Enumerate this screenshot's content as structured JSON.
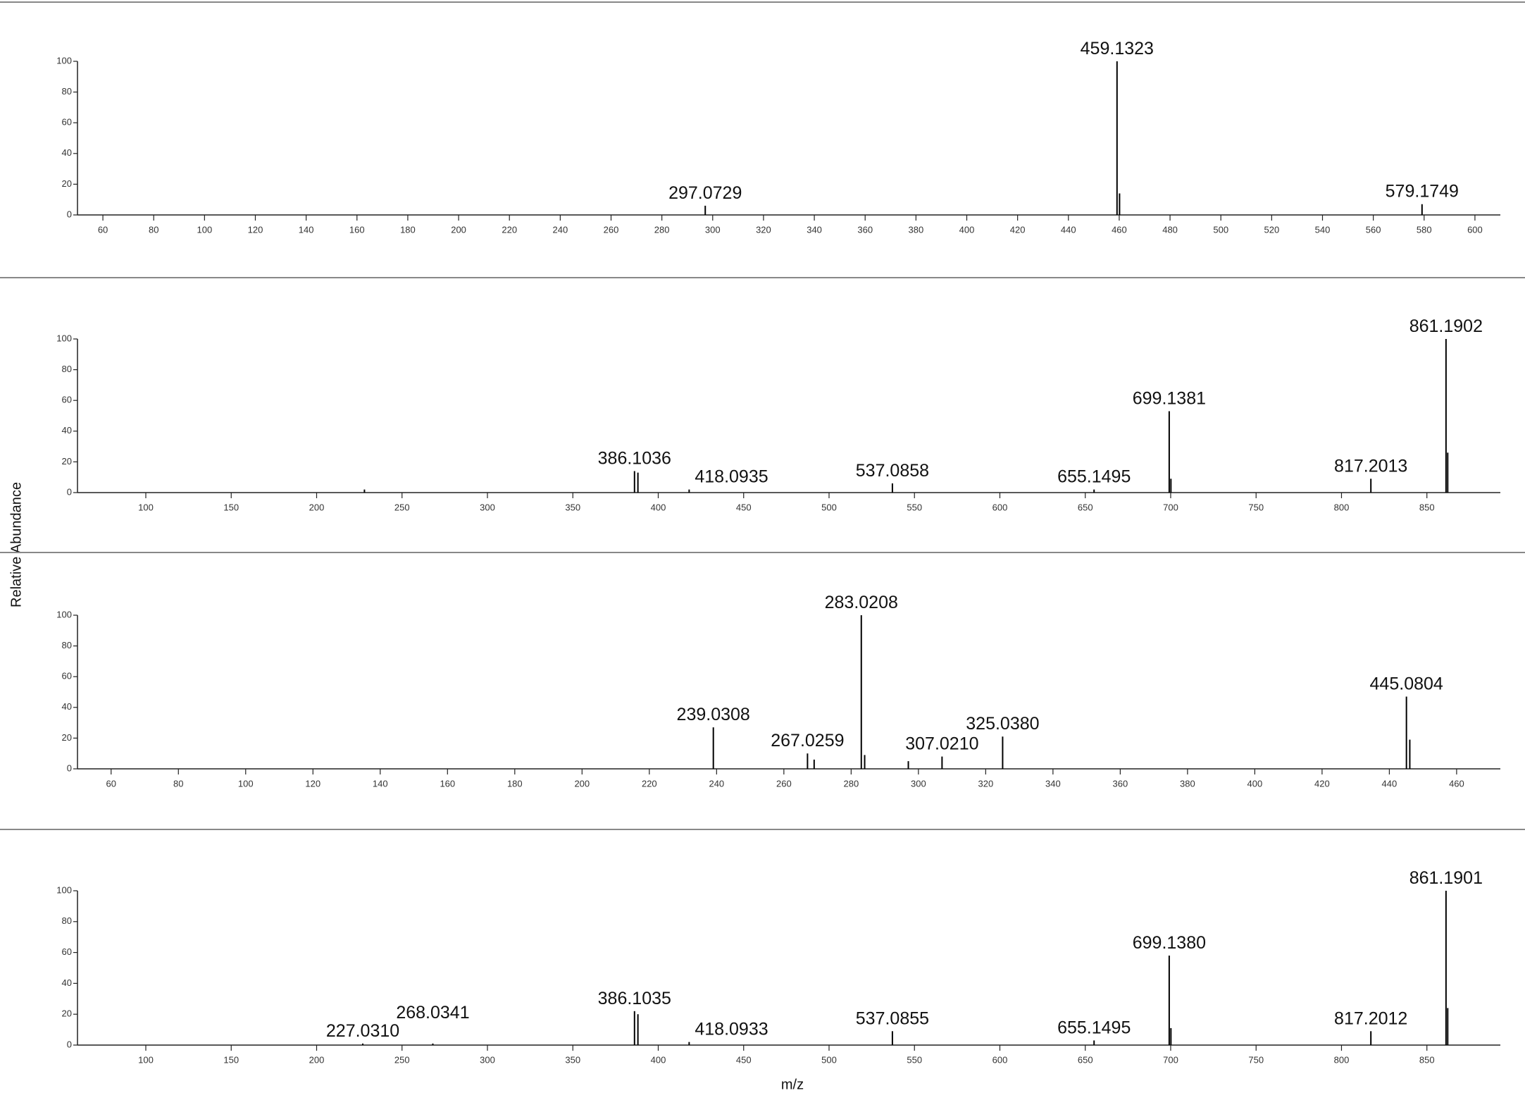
{
  "ylabel": "Relative Abundance",
  "xlabel": "m/z",
  "chart_data": [
    {
      "type": "spectrum",
      "x": [
        297.0729,
        459.1323,
        460.13,
        579.1749
      ],
      "values": [
        6,
        100,
        14,
        7
      ],
      "x_labels": [
        "297.0729",
        "459.1323",
        null,
        "579.1749"
      ],
      "color": "#000000",
      "xlim": [
        50,
        610
      ],
      "ylim": [
        0,
        100
      ],
      "xticks": [
        60,
        80,
        100,
        120,
        140,
        160,
        180,
        200,
        220,
        240,
        260,
        280,
        300,
        320,
        340,
        360,
        380,
        400,
        420,
        440,
        460,
        480,
        500,
        520,
        540,
        560,
        580,
        600
      ],
      "yticks": [
        0,
        20,
        40,
        60,
        80,
        100
      ]
    },
    {
      "type": "spectrum",
      "x": [
        228,
        386.1036,
        388.1,
        418.0935,
        537.0858,
        655.1495,
        699.1381,
        700.14,
        817.2013,
        861.1902,
        862.19
      ],
      "values": [
        2,
        14,
        13,
        2,
        6,
        2,
        53,
        9,
        9,
        100,
        26
      ],
      "x_labels": [
        null,
        "386.1036",
        null,
        "418.0935",
        "537.0858",
        "655.1495",
        "699.1381",
        null,
        "817.2013",
        "861.1902",
        null
      ],
      "color": "#000000",
      "xlim": [
        60,
        893
      ],
      "ylim": [
        0,
        100
      ],
      "xticks": [
        100,
        150,
        200,
        250,
        300,
        350,
        400,
        450,
        500,
        550,
        600,
        650,
        700,
        750,
        800,
        850
      ],
      "yticks": [
        0,
        20,
        40,
        60,
        80,
        100
      ]
    },
    {
      "type": "spectrum",
      "x": [
        239.0308,
        267.0259,
        269,
        283.0208,
        284.02,
        297,
        307.021,
        325.038,
        445.0804,
        446.08
      ],
      "values": [
        27,
        10,
        6,
        100,
        9,
        5,
        8,
        21,
        47,
        19
      ],
      "x_labels": [
        "239.0308",
        "267.0259",
        null,
        "283.0208",
        null,
        null,
        "307.0210",
        "325.0380",
        "445.0804",
        null
      ],
      "color": "#000000",
      "xlim": [
        50,
        473
      ],
      "ylim": [
        0,
        100
      ],
      "xticks": [
        60,
        80,
        100,
        120,
        140,
        160,
        180,
        200,
        220,
        240,
        260,
        280,
        300,
        320,
        340,
        360,
        380,
        400,
        420,
        440,
        460
      ],
      "yticks": [
        0,
        20,
        40,
        60,
        80,
        100
      ]
    },
    {
      "type": "spectrum",
      "x": [
        227.031,
        268.0341,
        386.1035,
        388.1,
        418.0933,
        537.0855,
        655.1495,
        699.138,
        700.14,
        817.2012,
        861.1901,
        862.19
      ],
      "values": [
        1,
        1,
        22,
        20,
        2,
        9,
        3,
        58,
        11,
        9,
        100,
        24
      ],
      "x_labels": [
        "227.0310",
        "268.0341",
        "386.1035",
        null,
        "418.0933",
        "537.0855",
        "655.1495",
        "699.1380",
        null,
        "817.2012",
        "861.1901",
        null
      ],
      "color": "#000000",
      "xlim": [
        60,
        893
      ],
      "ylim": [
        0,
        100
      ],
      "xticks": [
        100,
        150,
        200,
        250,
        300,
        350,
        400,
        450,
        500,
        550,
        600,
        650,
        700,
        750,
        800,
        850
      ],
      "yticks": [
        0,
        20,
        40,
        60,
        80,
        100
      ]
    }
  ]
}
